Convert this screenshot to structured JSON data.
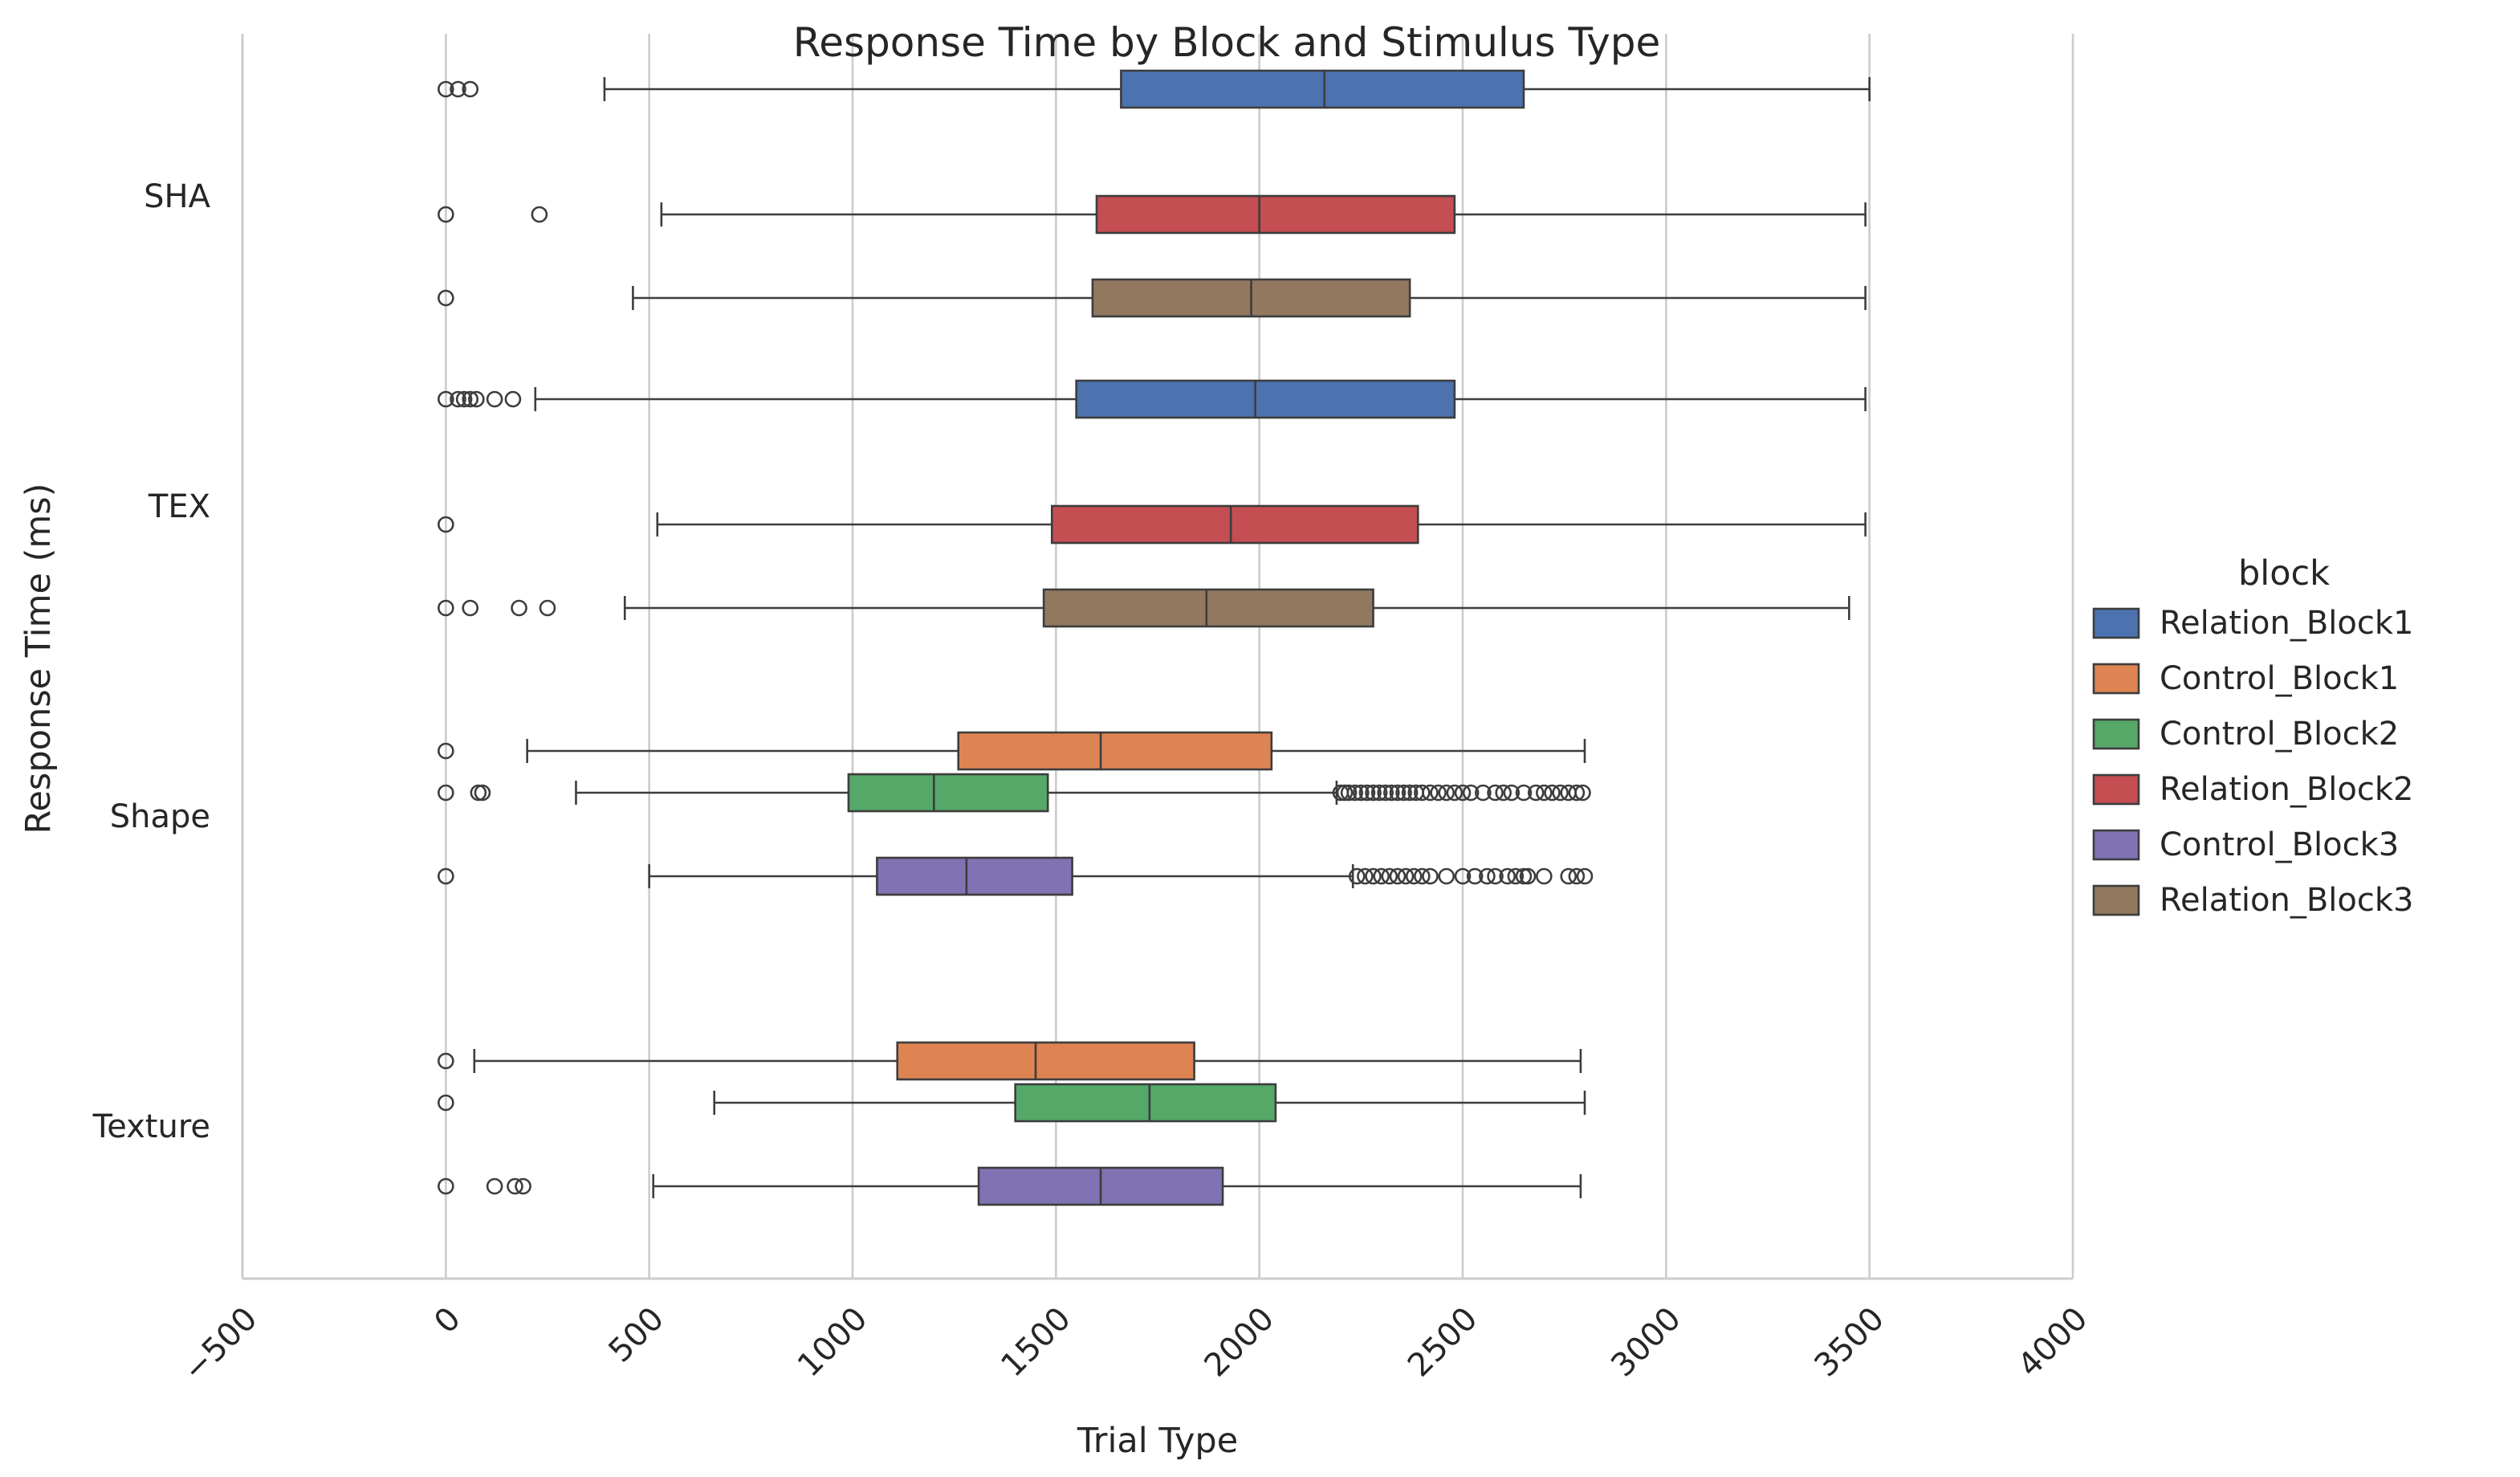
{
  "chart_data": {
    "type": "boxplot",
    "orientation": "horizontal",
    "title": "Response Time by Block and Stimulus Type",
    "xlabel": "Trial Type",
    "ylabel": "Response Time (ms)",
    "xlim": [
      -500,
      4000
    ],
    "xticks": [
      -500,
      0,
      500,
      1000,
      1500,
      2000,
      2500,
      3000,
      3500,
      4000
    ],
    "xtick_labels": [
      "−500",
      "0",
      "500",
      "1000",
      "1500",
      "2000",
      "2500",
      "3000",
      "3500",
      "4000"
    ],
    "grid": "vertical",
    "categories": [
      "SHA",
      "TEX",
      "Shape",
      "Texture"
    ],
    "legend": {
      "title": "block",
      "placement": "right",
      "entries": [
        {
          "name": "Relation_Block1",
          "color": "#4c72b0"
        },
        {
          "name": "Control_Block1",
          "color": "#dd8452"
        },
        {
          "name": "Control_Block2",
          "color": "#55a868"
        },
        {
          "name": "Relation_Block2",
          "color": "#c44e52"
        },
        {
          "name": "Control_Block3",
          "color": "#8172b3"
        },
        {
          "name": "Relation_Block3",
          "color": "#937860"
        }
      ]
    },
    "boxes": [
      {
        "category": "SHA",
        "block": "Relation_Block1",
        "whislo": 390,
        "q1": 1660,
        "med": 2160,
        "q3": 2650,
        "whishi": 3500,
        "fliers": [
          0,
          30,
          60
        ]
      },
      {
        "category": "SHA",
        "block": "Relation_Block2",
        "whislo": 530,
        "q1": 1600,
        "med": 2000,
        "q3": 2480,
        "whishi": 3490,
        "fliers": [
          0,
          230
        ]
      },
      {
        "category": "SHA",
        "block": "Relation_Block3",
        "whislo": 460,
        "q1": 1590,
        "med": 1980,
        "q3": 2370,
        "whishi": 3490,
        "fliers": [
          0
        ]
      },
      {
        "category": "TEX",
        "block": "Relation_Block1",
        "whislo": 220,
        "q1": 1550,
        "med": 1990,
        "q3": 2480,
        "whishi": 3490,
        "fliers": [
          0,
          30,
          45,
          60,
          75,
          120,
          165
        ]
      },
      {
        "category": "TEX",
        "block": "Relation_Block2",
        "whislo": 520,
        "q1": 1490,
        "med": 1930,
        "q3": 2390,
        "whishi": 3490,
        "fliers": [
          0
        ]
      },
      {
        "category": "TEX",
        "block": "Relation_Block3",
        "whislo": 440,
        "q1": 1470,
        "med": 1870,
        "q3": 2280,
        "whishi": 3450,
        "fliers": [
          0,
          60,
          180,
          250
        ]
      },
      {
        "category": "Shape",
        "block": "Control_Block1",
        "whislo": 200,
        "q1": 1260,
        "med": 1610,
        "q3": 2030,
        "whishi": 2800,
        "fliers": [
          0
        ]
      },
      {
        "category": "Shape",
        "block": "Control_Block2",
        "whislo": 320,
        "q1": 990,
        "med": 1200,
        "q3": 1480,
        "whishi": 2190,
        "fliers": [
          0,
          80,
          90,
          2200,
          2210,
          2220,
          2235,
          2250,
          2265,
          2280,
          2295,
          2310,
          2325,
          2340,
          2355,
          2370,
          2385,
          2400,
          2420,
          2440,
          2460,
          2480,
          2500,
          2520,
          2550,
          2580,
          2600,
          2620,
          2650,
          2680,
          2700,
          2720,
          2740,
          2760,
          2780,
          2795
        ]
      },
      {
        "category": "Shape",
        "block": "Control_Block3",
        "whislo": 500,
        "q1": 1060,
        "med": 1280,
        "q3": 1540,
        "whishi": 2230,
        "fliers": [
          0,
          2240,
          2260,
          2280,
          2300,
          2320,
          2340,
          2360,
          2380,
          2400,
          2420,
          2460,
          2500,
          2530,
          2560,
          2580,
          2610,
          2630,
          2650,
          2660,
          2700,
          2760,
          2780,
          2800
        ]
      },
      {
        "category": "Texture",
        "block": "Control_Block1",
        "whislo": 70,
        "q1": 1110,
        "med": 1450,
        "q3": 1840,
        "whishi": 2790,
        "fliers": [
          0
        ]
      },
      {
        "category": "Texture",
        "block": "Control_Block2",
        "whislo": 660,
        "q1": 1400,
        "med": 1730,
        "q3": 2040,
        "whishi": 2800,
        "fliers": [
          0
        ]
      },
      {
        "category": "Texture",
        "block": "Control_Block3",
        "whislo": 510,
        "q1": 1310,
        "med": 1610,
        "q3": 1910,
        "whishi": 2790,
        "fliers": [
          0,
          120,
          170,
          190
        ]
      }
    ]
  }
}
